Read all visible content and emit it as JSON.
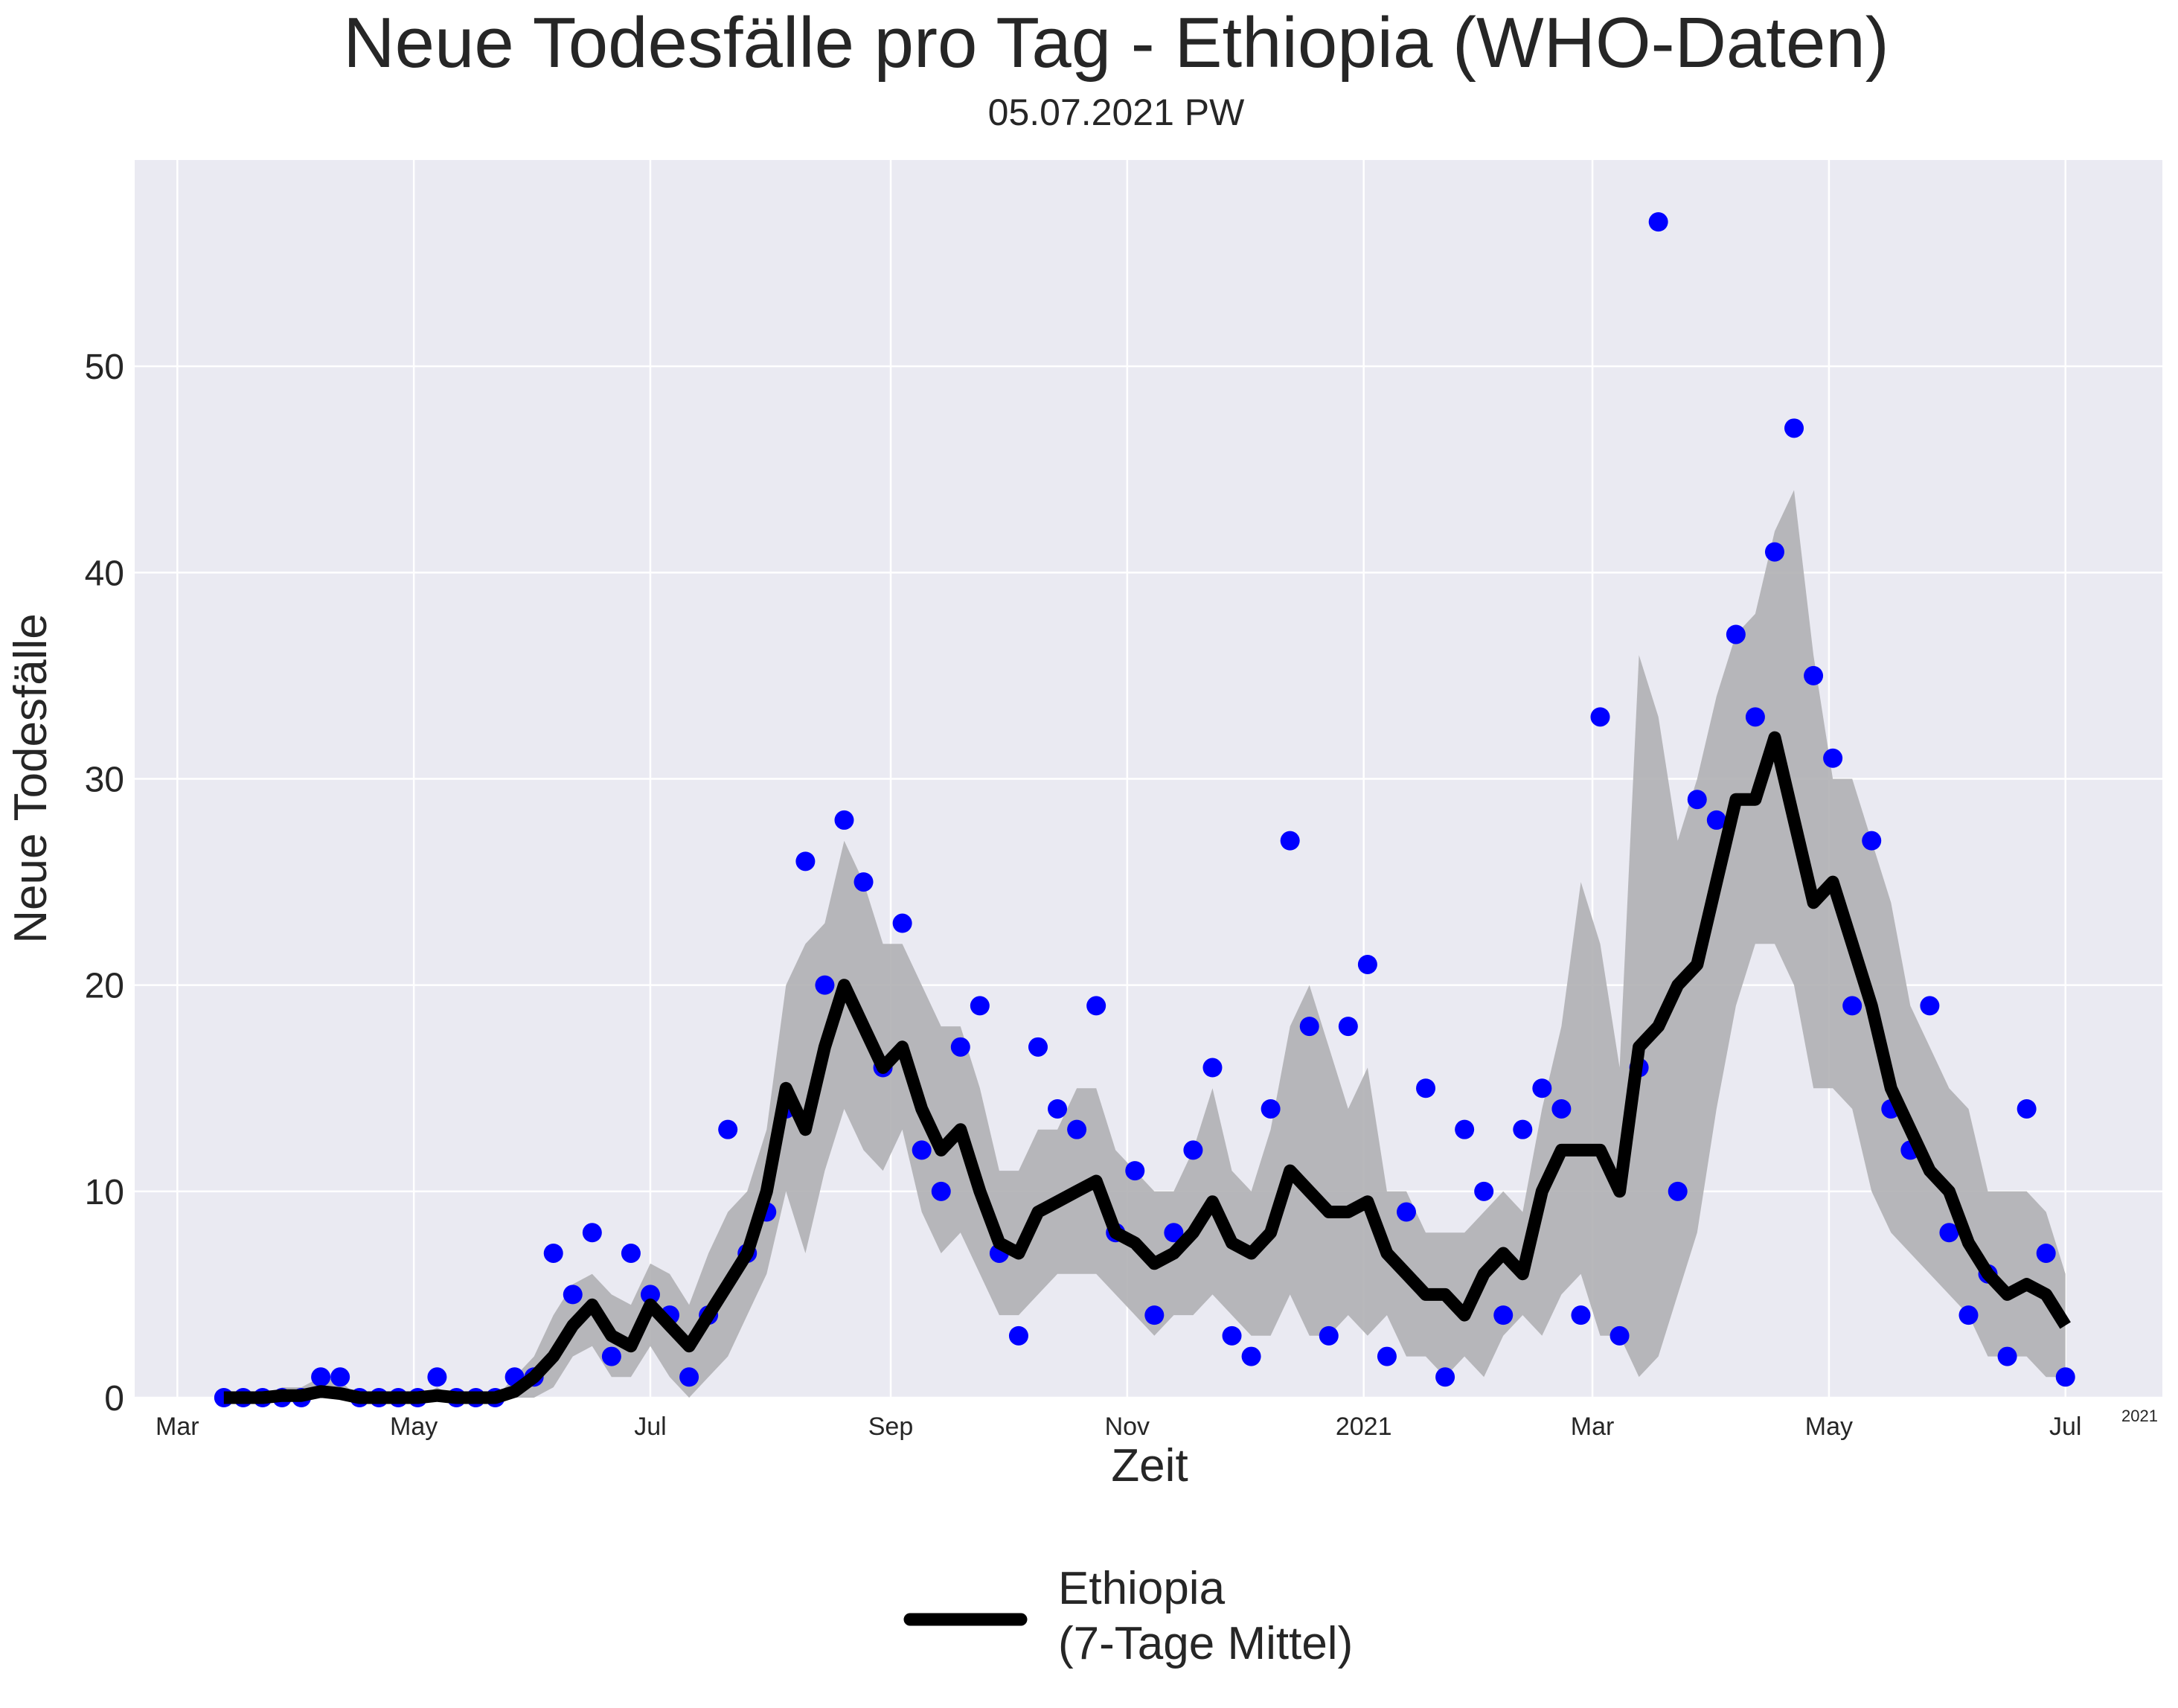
{
  "chart_data": {
    "type": "line",
    "title": "Neue Todesfälle pro Tag - Ethiopia (WHO-Daten)",
    "subtitle": "05.07.2021 PW",
    "x_label": "Zeit",
    "y_label": "Neue Todesfälle",
    "x_offset_label": "2021",
    "xlim": [
      "2020-02-19",
      "2021-07-26"
    ],
    "xticks": [
      {
        "value": "2020-03-01",
        "label": "Mar"
      },
      {
        "value": "2020-05-01",
        "label": "May"
      },
      {
        "value": "2020-07-01",
        "label": "Jul"
      },
      {
        "value": "2020-09-01",
        "label": "Sep"
      },
      {
        "value": "2020-11-01",
        "label": "Nov"
      },
      {
        "value": "2021-01-01",
        "label": "2021"
      },
      {
        "value": "2021-03-01",
        "label": "Mar"
      },
      {
        "value": "2021-05-01",
        "label": "May"
      },
      {
        "value": "2021-07-01",
        "label": "Jul"
      }
    ],
    "ylim": [
      0,
      60
    ],
    "yticks": [
      0,
      10,
      20,
      30,
      40,
      50
    ],
    "grid": true,
    "background": "#eaeaf2",
    "x": [
      "2020-03-13",
      "2020-03-18",
      "2020-03-23",
      "2020-03-28",
      "2020-04-02",
      "2020-04-07",
      "2020-04-12",
      "2020-04-17",
      "2020-04-22",
      "2020-04-27",
      "2020-05-02",
      "2020-05-07",
      "2020-05-12",
      "2020-05-17",
      "2020-05-22",
      "2020-05-27",
      "2020-06-01",
      "2020-06-06",
      "2020-06-11",
      "2020-06-16",
      "2020-06-21",
      "2020-06-26",
      "2020-07-01",
      "2020-07-06",
      "2020-07-11",
      "2020-07-16",
      "2020-07-21",
      "2020-07-26",
      "2020-07-31",
      "2020-08-05",
      "2020-08-10",
      "2020-08-15",
      "2020-08-20",
      "2020-08-25",
      "2020-08-30",
      "2020-09-04",
      "2020-09-09",
      "2020-09-14",
      "2020-09-19",
      "2020-09-24",
      "2020-09-29",
      "2020-10-04",
      "2020-10-09",
      "2020-10-14",
      "2020-10-19",
      "2020-10-24",
      "2020-10-29",
      "2020-11-03",
      "2020-11-08",
      "2020-11-13",
      "2020-11-18",
      "2020-11-23",
      "2020-11-28",
      "2020-12-03",
      "2020-12-08",
      "2020-12-13",
      "2020-12-18",
      "2020-12-23",
      "2020-12-28",
      "2021-01-02",
      "2021-01-07",
      "2021-01-12",
      "2021-01-17",
      "2021-01-22",
      "2021-01-27",
      "2021-02-01",
      "2021-02-06",
      "2021-02-11",
      "2021-02-16",
      "2021-02-21",
      "2021-02-26",
      "2021-03-03",
      "2021-03-08",
      "2021-03-13",
      "2021-03-18",
      "2021-03-23",
      "2021-03-28",
      "2021-04-02",
      "2021-04-07",
      "2021-04-12",
      "2021-04-17",
      "2021-04-22",
      "2021-04-27",
      "2021-05-02",
      "2021-05-07",
      "2021-05-12",
      "2021-05-17",
      "2021-05-22",
      "2021-05-27",
      "2021-06-01",
      "2021-06-06",
      "2021-06-11",
      "2021-06-16",
      "2021-06-21",
      "2021-06-26",
      "2021-07-01"
    ],
    "points": {
      "color": "#0000ff",
      "values": [
        0,
        0,
        0,
        0,
        0,
        1,
        1,
        0,
        0,
        0,
        0,
        1,
        0,
        0,
        0,
        1,
        1,
        7,
        5,
        8,
        2,
        7,
        5,
        4,
        1,
        4,
        13,
        7,
        9,
        14,
        26,
        20,
        28,
        25,
        16,
        23,
        12,
        10,
        17,
        19,
        7,
        3,
        17,
        14,
        13,
        19,
        8,
        11,
        4,
        8,
        12,
        16,
        3,
        2,
        14,
        27,
        18,
        3,
        18,
        21,
        2,
        9,
        15,
        1,
        13,
        10,
        4,
        13,
        15,
        14,
        4,
        33,
        3,
        16,
        57,
        10,
        29,
        28,
        37,
        33,
        41,
        47,
        35,
        31,
        19,
        27,
        14,
        12,
        19,
        8,
        4,
        6,
        2,
        14,
        7,
        1
      ]
    },
    "mean": {
      "name": "Ethiopia\n(7-Tage Mittel)",
      "color": "#000000",
      "values": [
        0,
        0,
        0,
        0.1,
        0.1,
        0.3,
        0.2,
        0,
        0,
        0,
        0,
        0.1,
        0,
        0,
        0,
        0.3,
        1,
        2,
        3.5,
        4.5,
        3,
        2.5,
        4.5,
        3.5,
        2.5,
        4,
        5.5,
        7,
        10,
        15,
        13,
        17,
        20,
        18,
        16,
        17,
        14,
        12,
        13,
        10,
        7.5,
        7,
        9,
        9.5,
        10,
        10.5,
        8,
        7.5,
        6.5,
        7,
        8,
        9.5,
        7.5,
        7,
        8,
        11,
        10,
        9,
        9,
        9.5,
        7,
        6,
        5,
        5,
        4,
        6,
        7,
        6,
        10,
        12,
        12,
        12,
        10,
        17,
        18,
        20,
        21,
        25,
        29,
        29,
        32,
        28,
        24,
        25,
        22,
        19,
        15,
        13,
        11,
        10,
        7.5,
        6,
        5,
        5.5,
        5,
        3.5
      ]
    },
    "band": {
      "color": "#b0b0b4",
      "upper": [
        0,
        0,
        0,
        0.5,
        0.5,
        1,
        0.8,
        0,
        0,
        0,
        0,
        0.5,
        0,
        0,
        0,
        1,
        2,
        4,
        5.5,
        6,
        5,
        4.5,
        6.5,
        6,
        4.5,
        7,
        9,
        10,
        13,
        20,
        22,
        23,
        27,
        25,
        22,
        22,
        20,
        18,
        18,
        15,
        11,
        11,
        13,
        13,
        15,
        15,
        12,
        11,
        10,
        10,
        12,
        15,
        11,
        10,
        13,
        18,
        20,
        17,
        14,
        16,
        10,
        10,
        8,
        8,
        8,
        9,
        10,
        9,
        14,
        18,
        25,
        22,
        16,
        36,
        33,
        27,
        30,
        34,
        37,
        38,
        42,
        44,
        36,
        30,
        30,
        27,
        24,
        19,
        17,
        15,
        14,
        10,
        10,
        10,
        9,
        6
      ],
      "lower": [
        0,
        0,
        0,
        0,
        0,
        0,
        0,
        0,
        0,
        0,
        0,
        0,
        0,
        0,
        0,
        0,
        0,
        0.5,
        2,
        2.5,
        1,
        1,
        2.5,
        1,
        0,
        1,
        2,
        4,
        6,
        10,
        7,
        11,
        14,
        12,
        11,
        13,
        9,
        7,
        8,
        6,
        4,
        4,
        5,
        6,
        6,
        6,
        5,
        4,
        3,
        4,
        4,
        5,
        4,
        3,
        3,
        5,
        3,
        3,
        4,
        3,
        4,
        2,
        2,
        1,
        2,
        1,
        3,
        4,
        3,
        5,
        6,
        3,
        3,
        1,
        2,
        5,
        8,
        14,
        19,
        22,
        22,
        20,
        15,
        15,
        14,
        10,
        8,
        7,
        6,
        5,
        4,
        2,
        2,
        2,
        1,
        1
      ]
    }
  }
}
